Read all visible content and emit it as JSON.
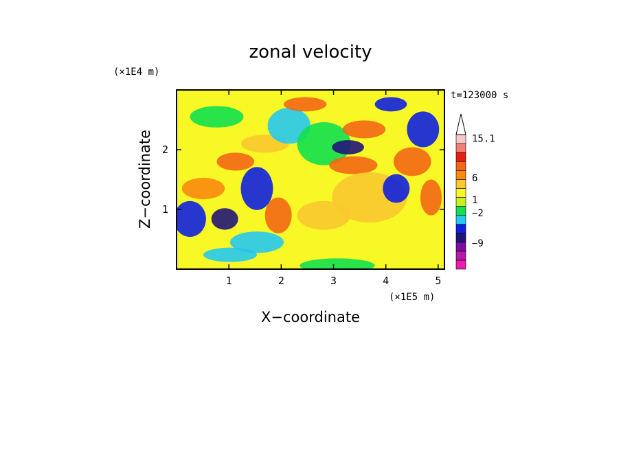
{
  "chart_data": {
    "type": "heatmap",
    "title": "zonal velocity",
    "xlabel": "X−coordinate",
    "ylabel": "Z−coordinate",
    "x_unit": "(×1E5 m)",
    "y_unit": "(×1E4 m)",
    "time_label": "t=123000 s",
    "xlim": [
      0,
      5.12
    ],
    "ylim": [
      0,
      3.0
    ],
    "x_ticks": [
      1,
      2,
      3,
      4,
      5
    ],
    "y_ticks": [
      1,
      2
    ],
    "colorbar": {
      "labels": [
        {
          "text": "15.1",
          "value": 15.1
        },
        {
          "text": "6",
          "value": 6
        },
        {
          "text": "1",
          "value": 1
        },
        {
          "text": "−2",
          "value": -2
        },
        {
          "text": "−9",
          "value": -9
        }
      ],
      "bins": [
        {
          "color": "#ec1cb0"
        },
        {
          "color": "#b51aa8"
        },
        {
          "color": "#7a0fa0"
        },
        {
          "color": "#22157a"
        },
        {
          "color": "#1020e0"
        },
        {
          "color": "#25c8f0"
        },
        {
          "color": "#12e050"
        },
        {
          "color": "#c8f022"
        },
        {
          "color": "#f8f826"
        },
        {
          "color": "#fac830"
        },
        {
          "color": "#f88a10"
        },
        {
          "color": "#f26815"
        },
        {
          "color": "#e81e10"
        },
        {
          "color": "#f28078"
        },
        {
          "color": "#f8c8c8"
        }
      ]
    }
  }
}
